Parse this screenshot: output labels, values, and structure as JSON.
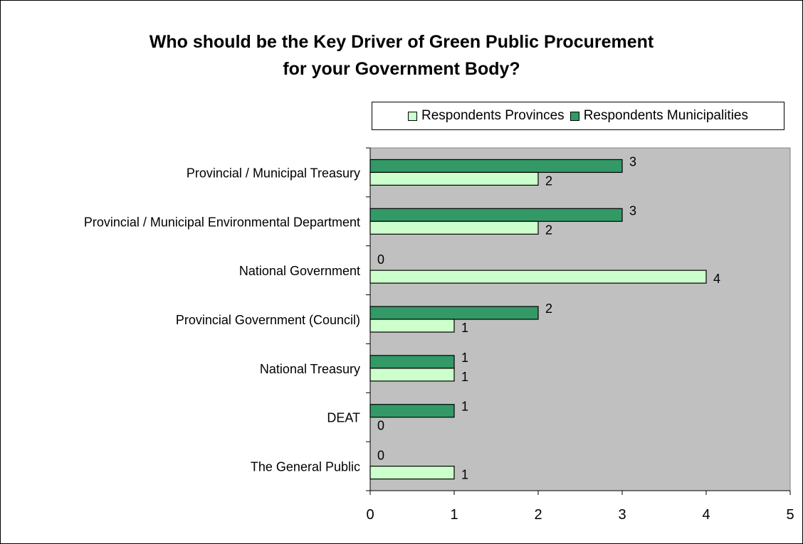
{
  "chart_data": {
    "type": "bar",
    "orientation": "horizontal",
    "title_lines": [
      "Who should be the Key Driver of Green Public Procurement",
      "for your Government Body?"
    ],
    "categories": [
      "Provincial / Municipal Treasury",
      "Provincial / Municipal Environmental Department",
      "National Government",
      "Provincial Government (Council)",
      "National Treasury",
      "DEAT",
      "The General Public"
    ],
    "series": [
      {
        "name": "Respondents Municipalities",
        "color": "#339966",
        "values": [
          3,
          3,
          0,
          2,
          1,
          1,
          0
        ]
      },
      {
        "name": "Respondents Provinces",
        "color": "#ccffcc",
        "values": [
          2,
          2,
          4,
          1,
          1,
          0,
          1
        ]
      }
    ],
    "legend_order": [
      "Respondents Provinces",
      "Respondents Municipalities"
    ],
    "xlim": [
      0,
      5
    ],
    "xticks": [
      "0",
      "1",
      "2",
      "3",
      "4",
      "5"
    ],
    "grid": false,
    "legend_position": "top-right",
    "plot_background": "#c0c0c0"
  }
}
